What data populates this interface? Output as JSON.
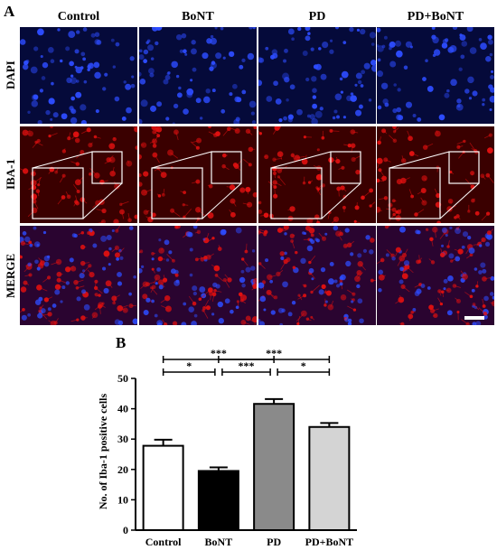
{
  "panel_a": {
    "letter": "A",
    "columns": [
      "Control",
      "BoNT",
      "PD",
      "PD+BoNT"
    ],
    "rows": [
      "DAPI",
      "IBA-1",
      "MERGE"
    ],
    "colors": {
      "dapi_bg": "#050a3a",
      "dapi_cell": "#2d4cff",
      "iba_bg": "#3a0000",
      "iba_cell": "#e01010",
      "merge_bg": "#2a0430",
      "inset_border": "#ffffff",
      "scale_bar": "#ffffff"
    }
  },
  "panel_b": {
    "letter": "B",
    "chart_data": {
      "type": "bar",
      "categories": [
        "Control",
        "BoNT",
        "PD",
        "PD+BoNT"
      ],
      "values": [
        27.8,
        19.5,
        41.6,
        34.0
      ],
      "errors": [
        2.0,
        1.2,
        1.6,
        1.3
      ],
      "bar_colors": [
        "#ffffff",
        "#000000",
        "#8a8a8a",
        "#d4d4d4"
      ],
      "ylabel": "No. of Iba-1 positive cells",
      "ylim": [
        0,
        50
      ],
      "yticks": [
        0,
        10,
        20,
        30,
        40,
        50
      ],
      "grid": false,
      "significance": [
        {
          "from": 0,
          "to": 1,
          "label": "*"
        },
        {
          "from": 1,
          "to": 2,
          "label": "***"
        },
        {
          "from": 2,
          "to": 3,
          "label": "*"
        },
        {
          "from": 0,
          "to": 2,
          "label": "***"
        },
        {
          "from": 1,
          "to": 3,
          "label": "***"
        }
      ]
    }
  }
}
